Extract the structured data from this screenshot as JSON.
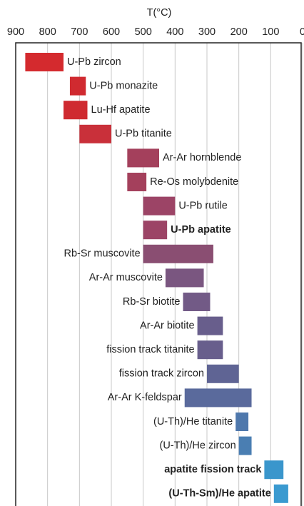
{
  "chart_data": {
    "type": "range_bar",
    "xlabel": "T(°C)",
    "categories": [
      "U-Pb zircon",
      "U-Pb monazite",
      "Lu-Hf apatite",
      "U-Pb titanite",
      "Ar-Ar hornblende",
      "Re-Os molybdenite",
      "U-Pb rutile",
      "U-Pb apatite",
      "Rb-Sr muscovite",
      "Ar-Ar muscovite",
      "Rb-Sr biotite",
      "Ar-Ar biotite",
      "fission track titanite",
      "fission track zircon",
      "Ar-Ar K-feldspar",
      "(U-Th)/He titanite",
      "(U-Th)/He zircon",
      "apatite fission track",
      "(U-Th-Sm)/He apatite"
    ],
    "starts": [
      870,
      730,
      750,
      700,
      550,
      550,
      500,
      500,
      500,
      430,
      375,
      330,
      330,
      300,
      370,
      210,
      200,
      120,
      90
    ],
    "ends": [
      750,
      680,
      675,
      600,
      450,
      490,
      400,
      425,
      280,
      310,
      290,
      250,
      250,
      200,
      160,
      170,
      160,
      60,
      45
    ],
    "colors": [
      "#d42a2e",
      "#d02a30",
      "#cf2a30",
      "#c9303a",
      "#a4405c",
      "#a4405c",
      "#9c4466",
      "#9c4466",
      "#8a4e72",
      "#7a5680",
      "#725a86",
      "#685e8c",
      "#685e8c",
      "#5f6494",
      "#5a6a9c",
      "#4f78ac",
      "#4a7eb2",
      "#3a96cc",
      "#3a9ad0"
    ],
    "bold": [
      false,
      false,
      false,
      false,
      false,
      false,
      false,
      true,
      false,
      false,
      false,
      false,
      false,
      false,
      false,
      false,
      false,
      true,
      true
    ],
    "xlim": [
      900,
      0
    ],
    "xticks": [
      900,
      800,
      700,
      600,
      500,
      400,
      300,
      200,
      100,
      0
    ],
    "grid": true
  }
}
